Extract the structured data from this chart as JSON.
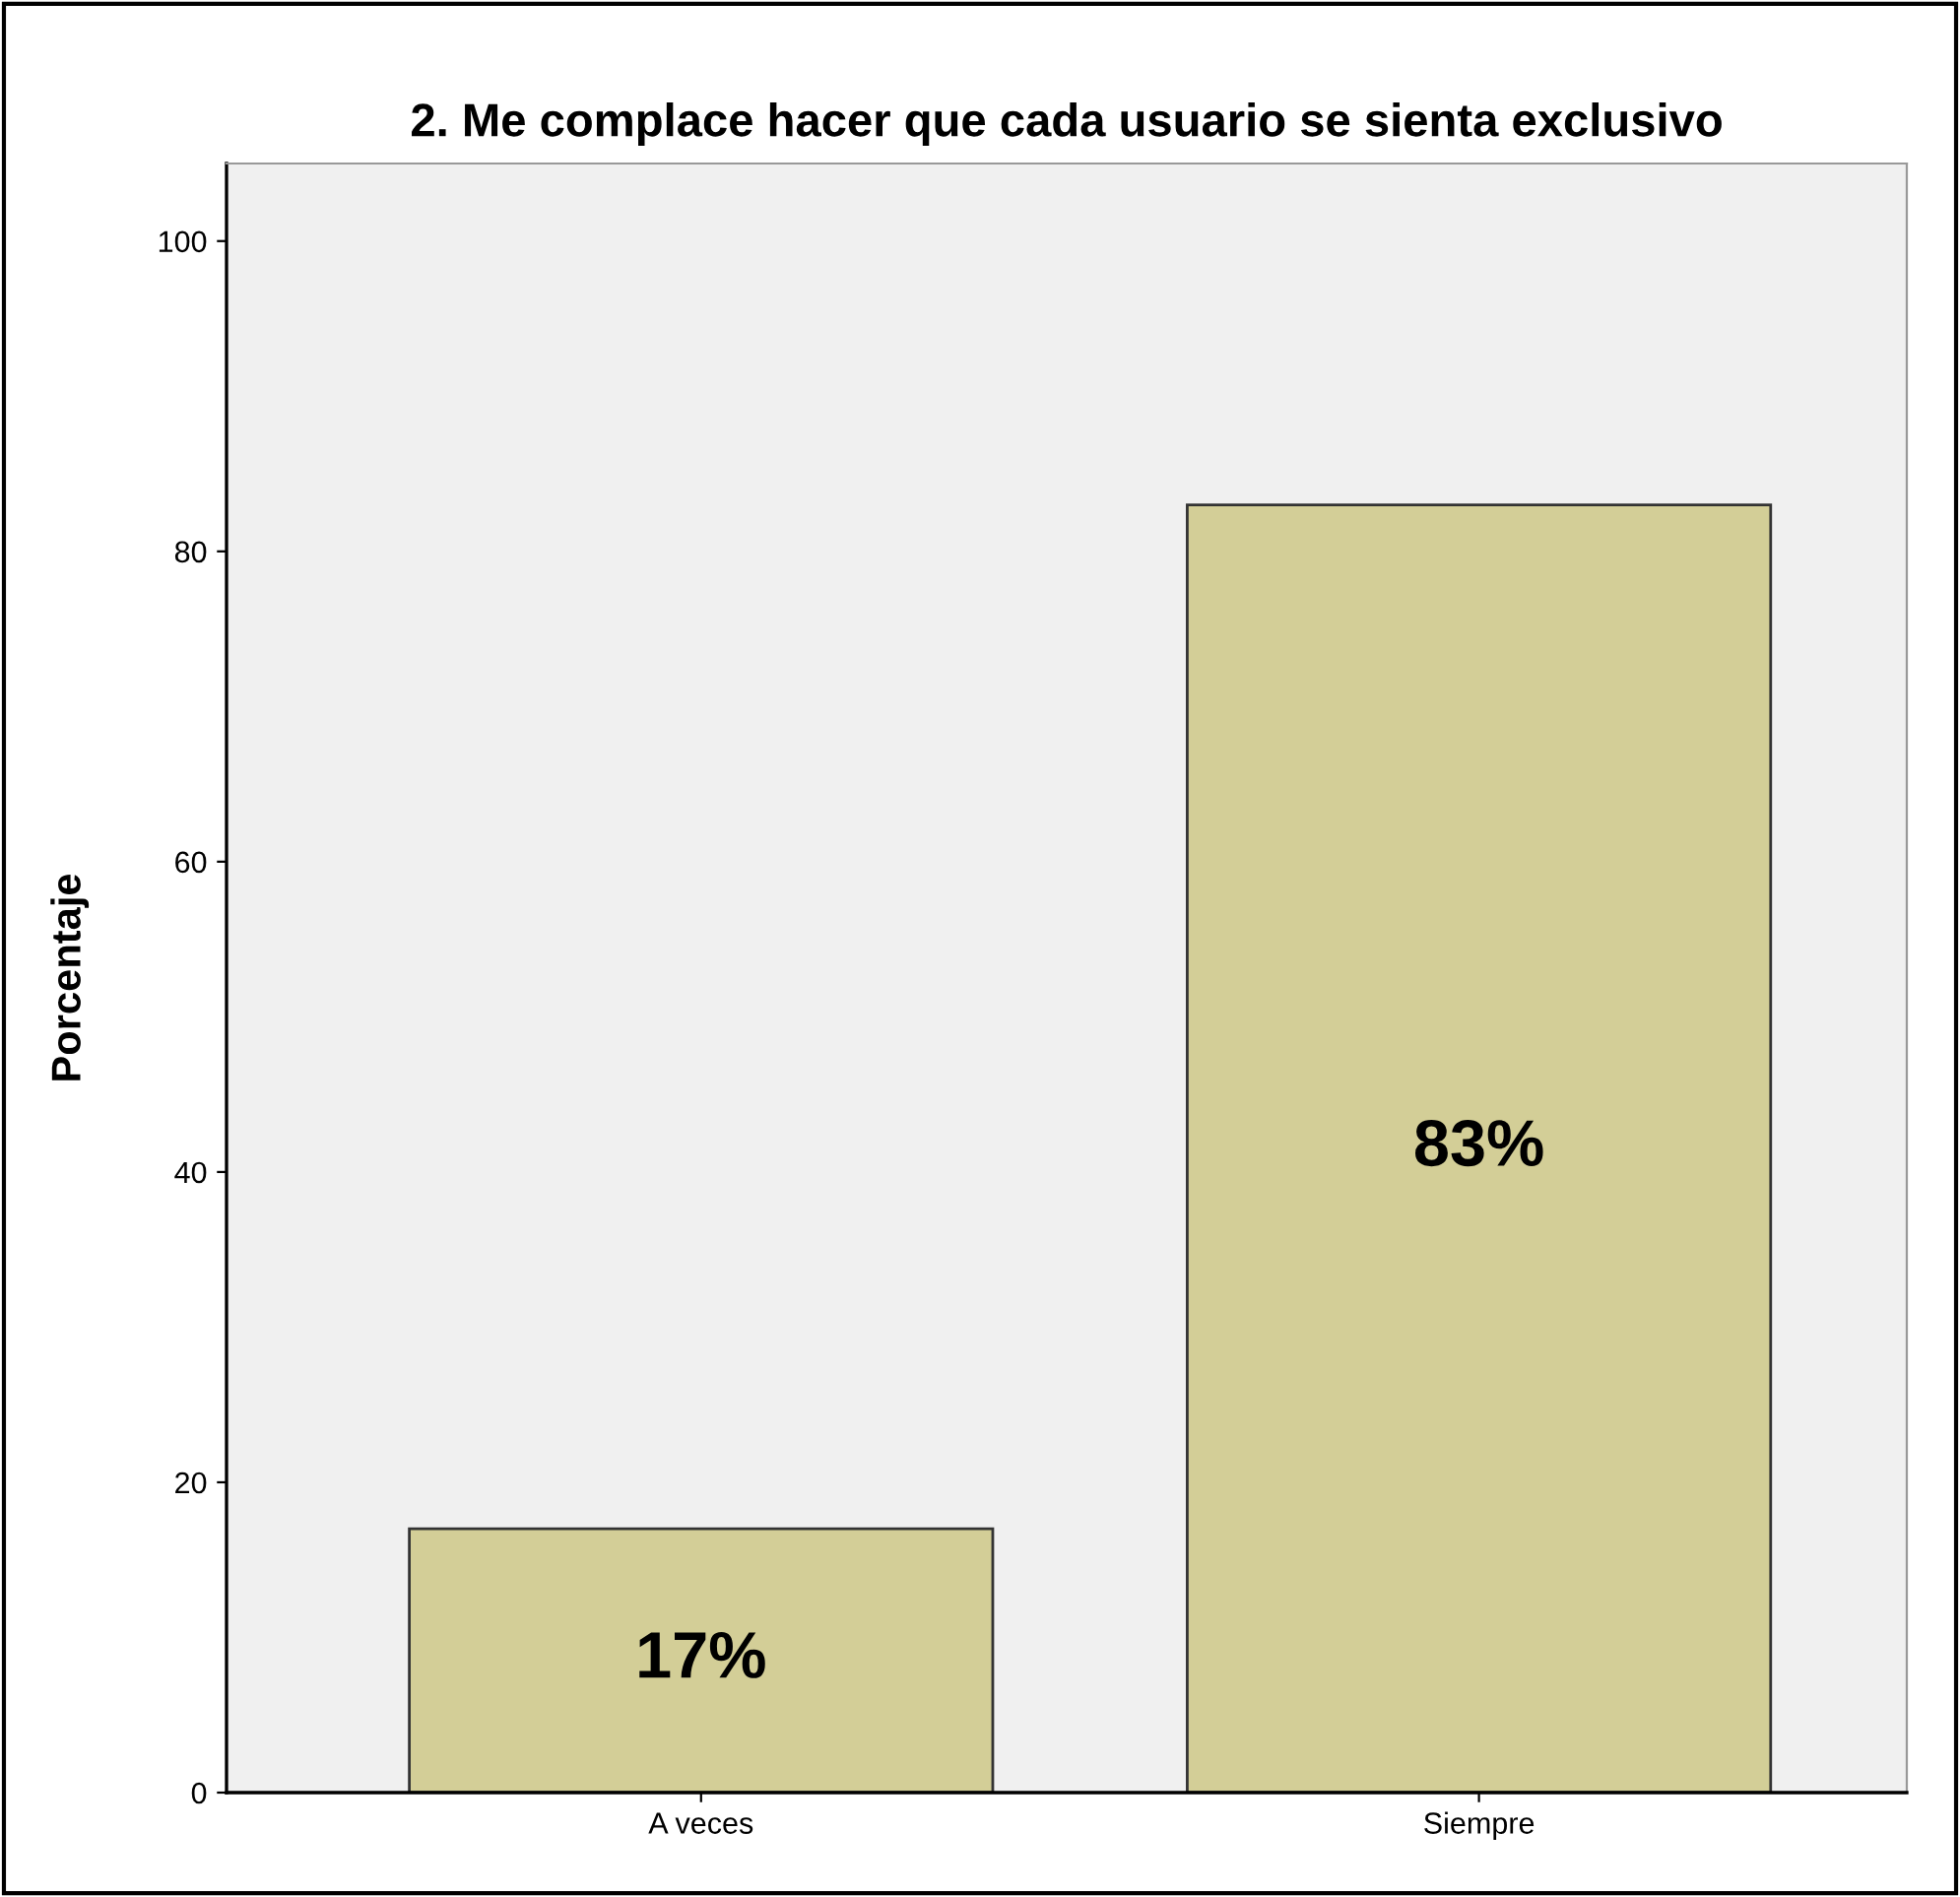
{
  "chart_data": {
    "type": "bar",
    "title": "2. Me complace hacer que cada usuario se sienta exclusivo",
    "ylabel": "Porcentaje",
    "categories": [
      "A veces",
      "Siempre"
    ],
    "values": [
      17,
      83
    ],
    "value_labels": [
      "17%",
      "83%"
    ],
    "color": "#d3ce97",
    "ylim": [
      0,
      105
    ],
    "yticks": [
      0,
      20,
      40,
      60,
      80,
      100
    ],
    "grid": false,
    "legend": false
  }
}
